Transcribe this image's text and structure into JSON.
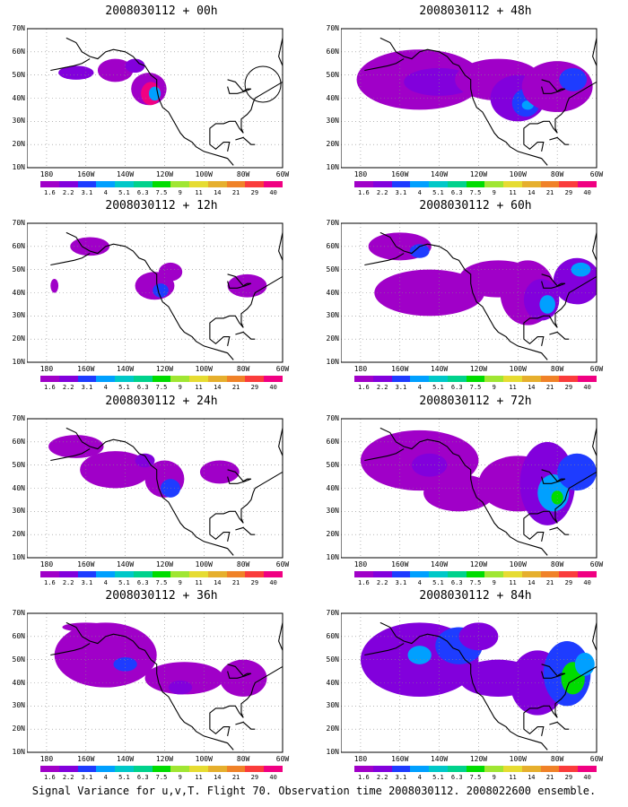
{
  "caption": "Signal Variance for u,v,T. Flight 70. Observation time 2008030112. 2008022600 ensemble.",
  "panels": [
    {
      "title": "2008030112 + 00h"
    },
    {
      "title": "2008030112 + 48h"
    },
    {
      "title": "2008030112 + 12h"
    },
    {
      "title": "2008030112 + 60h"
    },
    {
      "title": "2008030112 + 24h"
    },
    {
      "title": "2008030112 + 72h"
    },
    {
      "title": "2008030112 + 36h"
    },
    {
      "title": "2008030112 + 84h"
    }
  ],
  "lat_labels": [
    "70N",
    "60N",
    "50N",
    "40N",
    "30N",
    "20N",
    "10N"
  ],
  "lon_labels": [
    "180",
    "160W",
    "140W",
    "120W",
    "100W",
    "80W",
    "60W"
  ],
  "colorbar": {
    "labels": [
      "1.6",
      "2.2",
      "3.1",
      "4",
      "5.1",
      "6.3",
      "7.5",
      "9",
      "11",
      "14",
      "21",
      "29",
      "40"
    ],
    "colors": [
      "#a000c8",
      "#8200dc",
      "#1e3cff",
      "#00a0ff",
      "#00c8c8",
      "#00d28c",
      "#00dc00",
      "#a0e632",
      "#e6dc32",
      "#e6af2d",
      "#f08228",
      "#fa3c3c",
      "#f00082"
    ]
  }
}
